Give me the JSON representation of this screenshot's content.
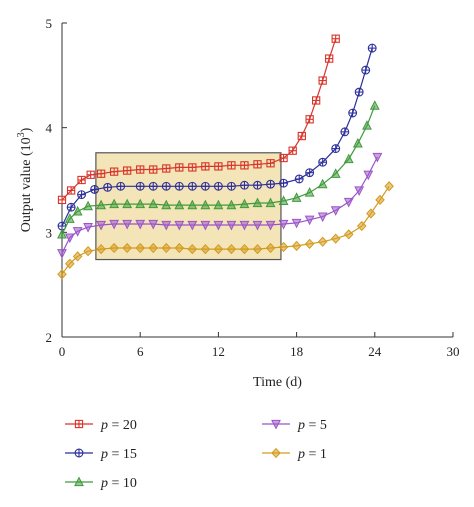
{
  "chart_data": {
    "type": "line",
    "xlabel": "Time (d)",
    "ylabel_main": "Output value (10",
    "ylabel_sup": "3",
    "ylabel_close": ")",
    "xlim": [
      0,
      30
    ],
    "ylim": [
      2,
      5
    ],
    "xticks": [
      "0",
      "6",
      "12",
      "18",
      "24",
      "30"
    ],
    "xtick_values": [
      0,
      6,
      12,
      18,
      24,
      30
    ],
    "yticks": [
      "2",
      "3",
      "4",
      "5"
    ],
    "ytick_values": [
      2,
      3,
      4,
      5
    ],
    "grid": false,
    "legend_position": "bottom",
    "highlight_region": {
      "x": [
        2.6,
        16.8
      ],
      "y": [
        2.74,
        3.76
      ],
      "color": "#f3e5b8",
      "stroke": "#555555"
    },
    "legend": [
      {
        "var": "p",
        "eq": " = 20",
        "series": 0
      },
      {
        "var": "p",
        "eq": " = 5",
        "series": 3
      },
      {
        "var": "p",
        "eq": " = 15",
        "series": 1
      },
      {
        "var": "p",
        "eq": " = 1",
        "series": 4
      },
      {
        "var": "p",
        "eq": " = 10",
        "series": 2
      }
    ],
    "series": [
      {
        "name": "p = 20",
        "color": "#d9342b",
        "marker": "square-plus",
        "x": [
          0,
          0.7,
          1.5,
          2.2,
          3,
          4,
          5,
          6,
          7,
          8,
          9,
          10,
          11,
          12,
          13,
          14,
          15,
          16,
          17,
          17.7,
          18.4,
          19,
          19.5,
          20,
          20.5,
          21
        ],
        "y": [
          3.31,
          3.4,
          3.5,
          3.55,
          3.56,
          3.58,
          3.59,
          3.6,
          3.6,
          3.61,
          3.62,
          3.62,
          3.63,
          3.63,
          3.64,
          3.64,
          3.65,
          3.66,
          3.71,
          3.78,
          3.92,
          4.08,
          4.26,
          4.45,
          4.66,
          4.85
        ]
      },
      {
        "name": "p = 15",
        "color": "#2d2f9a",
        "marker": "circle-plus",
        "x": [
          0,
          0.7,
          1.5,
          2.5,
          3.5,
          4.5,
          6,
          7,
          8,
          9,
          10,
          11,
          12,
          13,
          14,
          15,
          16,
          17,
          18.2,
          19,
          20,
          21,
          21.7,
          22.3,
          22.8,
          23.3,
          23.8
        ],
        "y": [
          3.06,
          3.24,
          3.36,
          3.41,
          3.43,
          3.44,
          3.44,
          3.44,
          3.44,
          3.44,
          3.44,
          3.44,
          3.44,
          3.44,
          3.45,
          3.45,
          3.46,
          3.47,
          3.51,
          3.57,
          3.67,
          3.8,
          3.96,
          4.14,
          4.34,
          4.55,
          4.76
        ]
      },
      {
        "name": "p = 10",
        "color": "#3f9a3a",
        "marker": "triangle-up",
        "x": [
          0,
          0.6,
          1.2,
          2,
          3,
          4,
          5,
          6,
          7,
          8,
          9,
          10,
          11,
          12,
          13,
          14,
          15,
          16,
          17,
          18,
          19,
          20,
          21,
          22,
          22.7,
          23.4,
          24
        ],
        "y": [
          2.98,
          3.13,
          3.2,
          3.25,
          3.26,
          3.27,
          3.27,
          3.27,
          3.27,
          3.26,
          3.26,
          3.26,
          3.26,
          3.26,
          3.26,
          3.27,
          3.28,
          3.28,
          3.3,
          3.33,
          3.38,
          3.46,
          3.56,
          3.7,
          3.85,
          4.02,
          4.21
        ]
      },
      {
        "name": "p = 5",
        "color": "#9a55c8",
        "marker": "triangle-down",
        "x": [
          0,
          0.6,
          1.2,
          2,
          3,
          4,
          5,
          6,
          7,
          8,
          9,
          10,
          11,
          12,
          13,
          14,
          15,
          16,
          17,
          18,
          19,
          20,
          21,
          22,
          22.8,
          23.5,
          24.2
        ],
        "y": [
          2.8,
          2.95,
          3.01,
          3.05,
          3.07,
          3.08,
          3.08,
          3.08,
          3.08,
          3.07,
          3.07,
          3.07,
          3.07,
          3.07,
          3.07,
          3.07,
          3.07,
          3.07,
          3.08,
          3.09,
          3.12,
          3.15,
          3.21,
          3.29,
          3.4,
          3.55,
          3.72
        ]
      },
      {
        "name": "p = 1",
        "color": "#d49a1f",
        "marker": "diamond",
        "x": [
          0,
          0.6,
          1.2,
          2,
          3,
          4,
          5,
          6,
          7,
          8,
          9,
          10,
          11,
          12,
          13,
          14,
          15,
          16,
          17,
          18,
          19,
          20,
          21,
          22,
          23,
          23.7,
          24.4,
          25.1
        ],
        "y": [
          2.6,
          2.7,
          2.77,
          2.82,
          2.84,
          2.85,
          2.85,
          2.85,
          2.85,
          2.85,
          2.85,
          2.84,
          2.84,
          2.84,
          2.84,
          2.84,
          2.84,
          2.85,
          2.86,
          2.87,
          2.89,
          2.91,
          2.94,
          2.98,
          3.06,
          3.18,
          3.31,
          3.44
        ]
      }
    ]
  }
}
